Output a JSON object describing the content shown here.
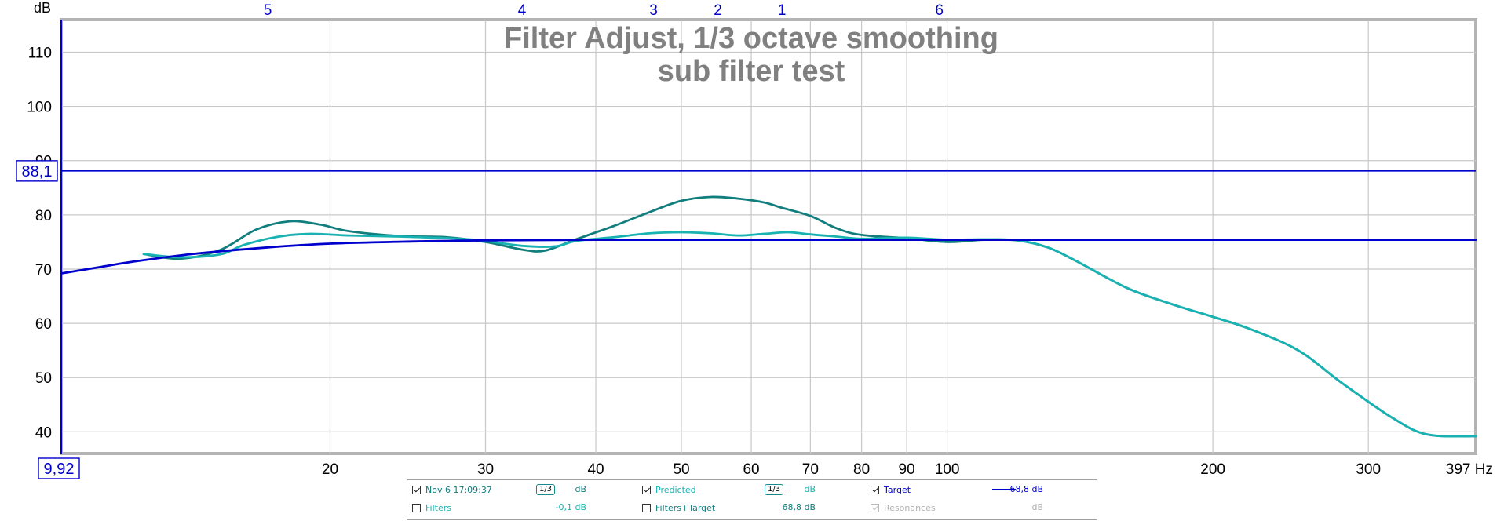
{
  "colors": {
    "measurement": "#127d7d",
    "predicted": "#19b2b2",
    "target": "#0000cc",
    "grid": "#c8c8c8",
    "title": "#808080",
    "freq_label": "#0000cc"
  },
  "chart_data": {
    "type": "line",
    "title": "Filter Adjust, 1/3 octave smoothing",
    "subtitle": "sub filter test",
    "ylabel": "dB",
    "xlabel": "Hz",
    "xscale": "log",
    "xlim": [
      9.92,
      397
    ],
    "ylim": [
      36,
      116
    ],
    "y_ticks": [
      40,
      50,
      60,
      70,
      80,
      90,
      100,
      110
    ],
    "x_ticks": [
      20,
      30,
      40,
      50,
      60,
      70,
      80,
      90,
      100,
      200,
      300
    ],
    "x_tick_labels": [
      "20",
      "30",
      "40",
      "50",
      "60",
      "70",
      "80",
      "90",
      "100",
      "200",
      "300"
    ],
    "x_end_label": "397 Hz",
    "x_min_readout": "9,92",
    "cursor_level_readout": "88,1",
    "cursor_level": 88.1,
    "filter_markers": [
      {
        "label": "5",
        "freq": 17.0
      },
      {
        "label": "4",
        "freq": 33.0
      },
      {
        "label": "3",
        "freq": 46.5
      },
      {
        "label": "2",
        "freq": 55.0
      },
      {
        "label": "1",
        "freq": 65.0
      },
      {
        "label": "6",
        "freq": 98.0
      }
    ],
    "series": [
      {
        "name": "Nov 6 17:09:37",
        "points": [
          [
            12.3,
            72.8
          ],
          [
            13.5,
            71.9
          ],
          [
            15,
            73.5
          ],
          [
            16.5,
            77.3
          ],
          [
            18,
            78.8
          ],
          [
            19.5,
            78.2
          ],
          [
            21,
            77
          ],
          [
            24,
            76.1
          ],
          [
            27,
            75.9
          ],
          [
            30,
            75
          ],
          [
            33,
            73.6
          ],
          [
            35,
            73.4
          ],
          [
            38,
            75.5
          ],
          [
            42,
            78
          ],
          [
            46,
            80.5
          ],
          [
            50,
            82.6
          ],
          [
            54,
            83.3
          ],
          [
            58,
            83
          ],
          [
            62,
            82.3
          ],
          [
            65,
            81.3
          ],
          [
            70,
            79.8
          ],
          [
            75,
            77.5
          ],
          [
            80,
            76.3
          ],
          [
            90,
            75.7
          ],
          [
            100,
            75
          ],
          [
            110,
            75.4
          ],
          [
            120,
            75.3
          ],
          [
            130,
            74
          ],
          [
            140,
            71.5
          ],
          [
            160,
            66.5
          ],
          [
            180,
            63.5
          ],
          [
            200,
            61.2
          ],
          [
            220,
            59
          ],
          [
            250,
            55
          ],
          [
            280,
            49
          ],
          [
            320,
            42.5
          ],
          [
            350,
            39.5
          ],
          [
            397,
            39.2
          ]
        ]
      },
      {
        "name": "Predicted",
        "points": [
          [
            12.3,
            72.8
          ],
          [
            13.5,
            72.2
          ],
          [
            15,
            72.7
          ],
          [
            16,
            74.5
          ],
          [
            17.5,
            76
          ],
          [
            19,
            76.5
          ],
          [
            21,
            76.2
          ],
          [
            24,
            76
          ],
          [
            28,
            75.6
          ],
          [
            30,
            75.2
          ],
          [
            33,
            74.3
          ],
          [
            36,
            74.2
          ],
          [
            38,
            75.2
          ],
          [
            42,
            75.9
          ],
          [
            46,
            76.6
          ],
          [
            50,
            76.8
          ],
          [
            54,
            76.6
          ],
          [
            58,
            76.2
          ],
          [
            62,
            76.5
          ],
          [
            66,
            76.8
          ],
          [
            70,
            76.4
          ],
          [
            75,
            76
          ],
          [
            80,
            75.6
          ],
          [
            90,
            75.8
          ],
          [
            100,
            75.4
          ],
          [
            110,
            75.5
          ],
          [
            120,
            75.3
          ],
          [
            130,
            74
          ],
          [
            140,
            71.5
          ],
          [
            160,
            66.5
          ],
          [
            180,
            63.5
          ],
          [
            200,
            61.2
          ],
          [
            220,
            59
          ],
          [
            250,
            55
          ],
          [
            280,
            49
          ],
          [
            320,
            42.5
          ],
          [
            350,
            39.5
          ],
          [
            397,
            39.2
          ]
        ]
      },
      {
        "name": "Target",
        "points": [
          [
            9.92,
            69.2
          ],
          [
            11,
            70.4
          ],
          [
            12,
            71.4
          ],
          [
            14,
            72.8
          ],
          [
            17,
            74
          ],
          [
            20,
            74.7
          ],
          [
            25,
            75.1
          ],
          [
            30,
            75.3
          ],
          [
            40,
            75.4
          ],
          [
            60,
            75.4
          ],
          [
            100,
            75.4
          ],
          [
            397,
            75.4
          ]
        ]
      }
    ]
  },
  "legend": {
    "measurement": {
      "label": "Nov 6 17:09:37",
      "checked": true,
      "smoothing": "1/3",
      "value": "dB"
    },
    "predicted": {
      "label": "Predicted",
      "checked": true,
      "smoothing": "1/3",
      "value": "dB"
    },
    "target": {
      "label": "Target",
      "checked": true,
      "value": "68,8 dB"
    },
    "filters": {
      "label": "Filters",
      "checked": false,
      "value": "-0,1 dB"
    },
    "filters_target": {
      "label": "Filters+Target",
      "checked": false,
      "value": "68,8 dB"
    },
    "resonances": {
      "label": "Resonances",
      "checked": true,
      "value": "dB"
    }
  }
}
